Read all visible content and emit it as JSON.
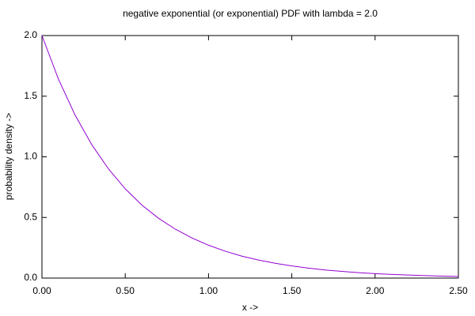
{
  "chart_data": {
    "type": "line",
    "title": "negative exponential (or exponential) PDF with lambda = 2.0",
    "x_label": "x ->",
    "y_label": "probability density ->",
    "x": [
      0,
      0.1,
      0.2,
      0.3,
      0.4,
      0.5,
      0.6,
      0.7,
      0.8,
      0.9,
      1.0,
      1.1,
      1.2,
      1.3,
      1.4,
      1.5,
      1.6,
      1.7,
      1.8,
      1.9,
      2.0,
      2.1,
      2.2,
      2.3,
      2.4,
      2.5
    ],
    "values": [
      2.0,
      1.637,
      1.341,
      1.098,
      0.899,
      0.736,
      0.602,
      0.493,
      0.404,
      0.331,
      0.271,
      0.222,
      0.181,
      0.149,
      0.122,
      0.1,
      0.082,
      0.067,
      0.055,
      0.045,
      0.037,
      0.03,
      0.025,
      0.02,
      0.016,
      0.013
    ],
    "color": "#9400d3",
    "xlim": [
      0,
      2.5
    ],
    "ylim": [
      0,
      2.0
    ],
    "xticks": [
      {
        "value": 0,
        "label": "0.00"
      },
      {
        "value": 0.5,
        "label": "0.50"
      },
      {
        "value": 1.0,
        "label": "1.00"
      },
      {
        "value": 1.5,
        "label": "1.50"
      },
      {
        "value": 2.0,
        "label": "2.00"
      },
      {
        "value": 2.5,
        "label": "2.50"
      }
    ],
    "yticks": [
      {
        "value": 0,
        "label": "0.0"
      },
      0.5,
      {
        "value": 1.0,
        "label": "1.0"
      },
      1.5,
      {
        "value": 2.0,
        "label": "2.0"
      }
    ]
  }
}
